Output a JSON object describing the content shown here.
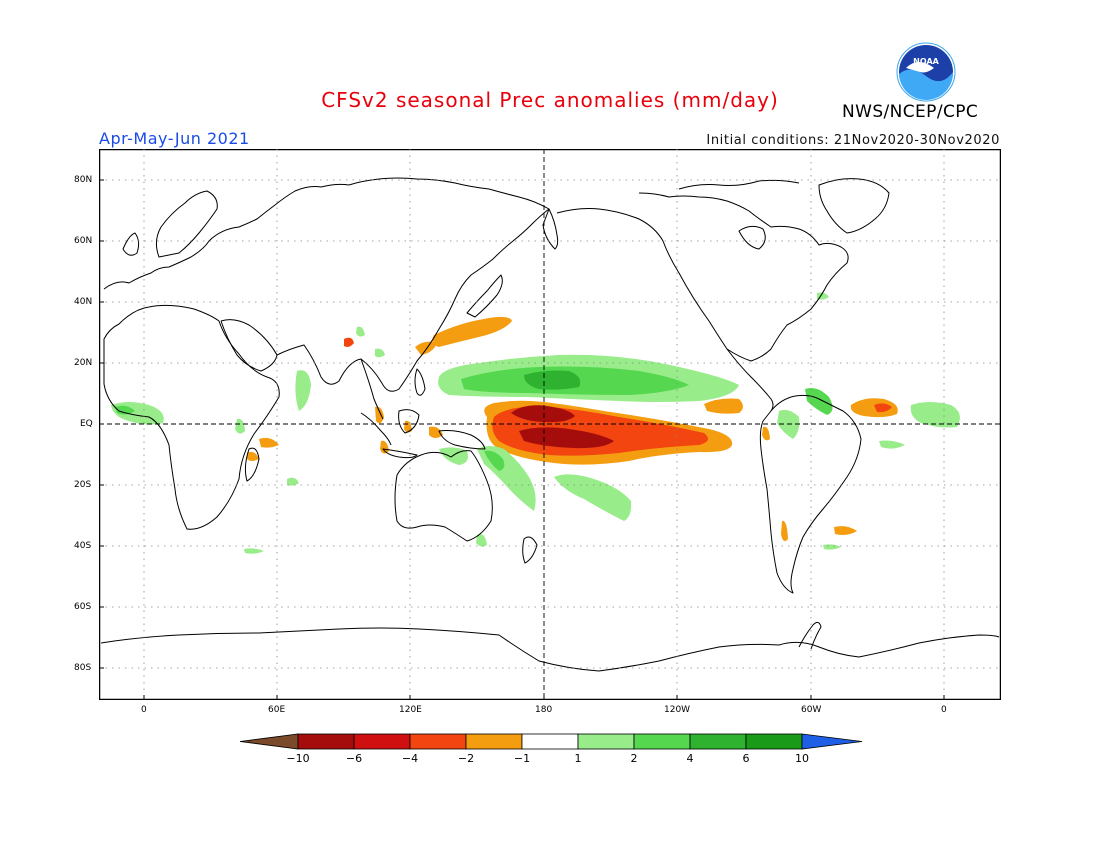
{
  "header": {
    "title": "CFSv2 seasonal Prec anomalies (mm/day)",
    "season": "Apr-May-Jun 2021",
    "initial_conditions": "Initial conditions: 21Nov2020-30Nov2020",
    "agency": "NWS/NCEP/CPC",
    "logo_text": "NOAA"
  },
  "axes": {
    "lat_labels": [
      "80N",
      "60N",
      "40N",
      "20N",
      "EQ",
      "20S",
      "40S",
      "60S",
      "80S"
    ],
    "lon_labels": [
      "0",
      "60E",
      "120E",
      "180",
      "120W",
      "60W",
      "0"
    ]
  },
  "colorbar": {
    "labels": [
      "-10",
      "-6",
      "-4",
      "-2",
      "-1",
      "1",
      "2",
      "4",
      "6",
      "10"
    ],
    "colors": [
      "#7a4a2a",
      "#a50d0d",
      "#d01010",
      "#f2450f",
      "#f59d10",
      "#ffffff",
      "#98ec8a",
      "#55d84f",
      "#2fb22f",
      "#199a19",
      "#1f5fe6"
    ]
  },
  "colors": {
    "title": "#e8000b",
    "season": "#1a4be8"
  }
}
